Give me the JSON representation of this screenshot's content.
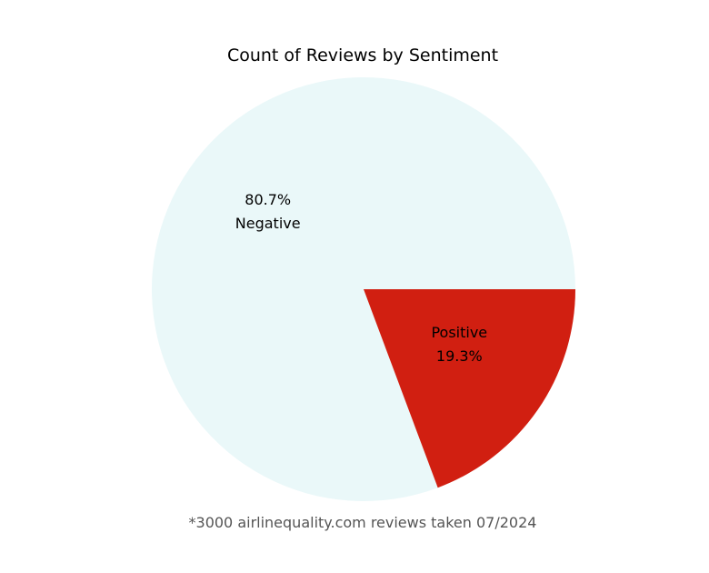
{
  "chart_data": {
    "type": "pie",
    "title": "Count of Reviews by Sentiment",
    "categories": [
      "Negative",
      "Positive"
    ],
    "values": [
      80.7,
      19.3
    ],
    "value_labels": [
      "80.7%",
      "19.3%"
    ],
    "colors": [
      "#eaf8f9",
      "#d11f11"
    ],
    "start_angle": 0,
    "direction": "counterclockwise",
    "legend": "none",
    "annotation": "*3000 airlinequality.com reviews taken 07/2024"
  }
}
